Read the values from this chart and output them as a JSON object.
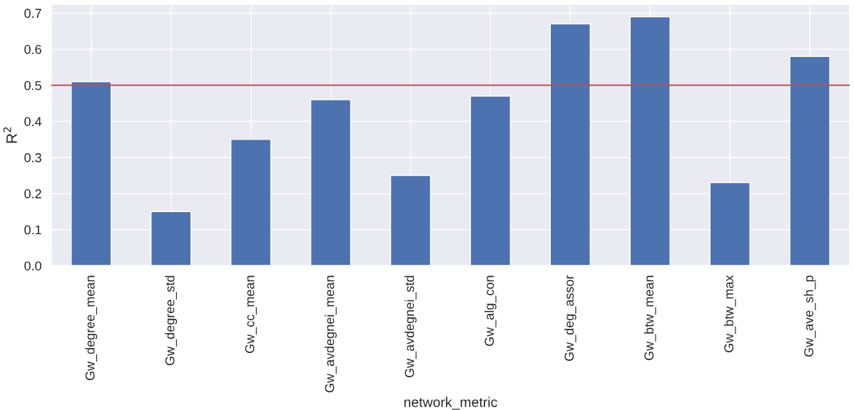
{
  "chart_data": {
    "type": "bar",
    "xlabel": "network_metric",
    "ylabel": "R$^{2}$",
    "categories": [
      "Gw_degree_mean",
      "Gw_degree_std",
      "Gw_cc_mean",
      "Gw_avdegnei_mean",
      "Gw_avdegnei_std",
      "Gw_alg_con",
      "Gw_deg_assor",
      "Gw_btw_mean",
      "Gw_btw_max",
      "Gw_ave_sh_p"
    ],
    "values": [
      0.51,
      0.15,
      0.35,
      0.46,
      0.25,
      0.47,
      0.67,
      0.69,
      0.23,
      0.58
    ],
    "color": "#4c72b0",
    "ylim": [
      0,
      0.725
    ],
    "yticks": [
      {
        "value": 0,
        "label": "0.0"
      },
      0.1,
      0.2,
      0.3,
      0.4,
      0.5,
      0.6,
      0.7
    ],
    "ref_lines": [
      {
        "axis": "y",
        "value": 0.5,
        "color": "#c44e52"
      }
    ],
    "grid": true
  }
}
